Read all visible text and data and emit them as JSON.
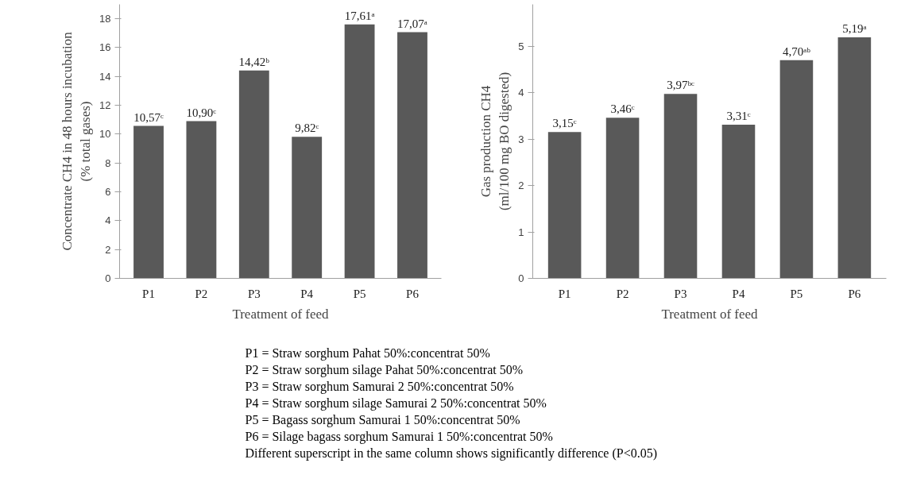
{
  "chart_data": [
    {
      "type": "bar",
      "ylabel": "Concentrate CH4 in 48 hours incubation\n(% total gases)",
      "xlabel": "Treatment of feed",
      "categories": [
        "P1",
        "P2",
        "P3",
        "P4",
        "P5",
        "P6"
      ],
      "series": [
        {
          "color": "#595959",
          "values": [
            10.57,
            10.9,
            14.42,
            9.82,
            17.61,
            17.07
          ],
          "value_labels": [
            "10,57ᶜ",
            "10,90ᶜ",
            "14,42ᵇ",
            "9,82ᶜ",
            "17,61ᵃ",
            "17,07ᵃ"
          ]
        }
      ],
      "ylim": [
        0,
        19
      ],
      "yticks": [
        0,
        2,
        4,
        6,
        8,
        10,
        12,
        14,
        16,
        18
      ],
      "grid": false
    },
    {
      "type": "bar",
      "ylabel": "Gas production CH4\n(ml/100 mg BO digested)",
      "xlabel": "Treatment of feed",
      "categories": [
        "P1",
        "P2",
        "P3",
        "P4",
        "P5",
        "P6"
      ],
      "series": [
        {
          "color": "#595959",
          "values": [
            3.15,
            3.46,
            3.97,
            3.31,
            4.7,
            5.19
          ],
          "value_labels": [
            "3,15ᶜ",
            "3,46ᶜ",
            "3,97ᵇᶜ",
            "3,31ᶜ",
            "4,70ᵃᵇ",
            "5,19ᵃ"
          ]
        }
      ],
      "ylim": [
        0,
        5.9
      ],
      "yticks": [
        0,
        1,
        2,
        3,
        4,
        5
      ],
      "grid": false
    },
    {
      "type": "other",
      "annotations": [
        "P1 = Straw sorghum Pahat 50%:concentrat 50%",
        "P2 = Straw sorghum silage Pahat 50%:concentrat 50%",
        "P3 = Straw sorghum Samurai 2 50%:concentrat 50%",
        "P4 = Straw sorghum silage Samurai 2 50%:concentrat 50%",
        "P5 = Bagass sorghum Samurai 1 50%:concentrat 50%",
        "P6 = Silage bagass sorghum Samurai 1 50%:concentrat 50%",
        "Different superscript in the same column shows significantly difference (P<0.05)"
      ]
    }
  ]
}
